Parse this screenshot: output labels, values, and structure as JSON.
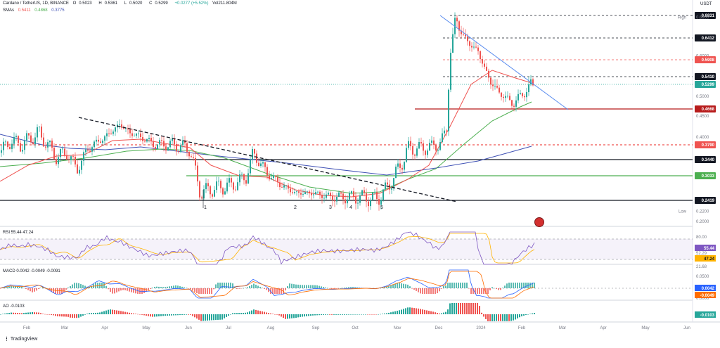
{
  "header": {
    "title": "Cardano / TetherUS, 1D, BINANCE",
    "ohlc": [
      {
        "k": "O",
        "v": "0.5023"
      },
      {
        "k": "H",
        "v": "0.5361"
      },
      {
        "k": "L",
        "v": "0.5020"
      },
      {
        "k": "C",
        "v": "0.5299"
      }
    ],
    "change": "+0.0277 (+5.52%)",
    "volume": "Vol211.804M",
    "sma_label": "SMAs",
    "sma_values": [
      "0.5411",
      "0.4868",
      "0.3775"
    ],
    "currency": "USDT"
  },
  "colors": {
    "up": "#26a69a",
    "down": "#ef5350",
    "sma_fast": "#ef5350",
    "sma_mid": "#4caf50",
    "sma_slow": "#3f51b5",
    "rsi": "#7e57c2",
    "rsi_ma": "#ffb300",
    "macd": "#2962ff",
    "signal": "#ff6d00",
    "trendline": "#5b8def"
  },
  "chart_data": [
    {
      "type": "candlestick",
      "title": "Cardano / TetherUS, 1D, BINANCE",
      "y_axis_ticks": [
        "0.6000",
        "0.5000",
        "0.4500",
        "0.4000",
        "0.2000"
      ],
      "time_labels": [
        "Feb",
        "Mar",
        "Apr",
        "May",
        "Jun",
        "Jul",
        "Aug",
        "Sep",
        "Oct",
        "Nov",
        "Dec",
        "2024",
        "Feb",
        "Mar",
        "Apr",
        "May",
        "Jun"
      ],
      "price_path": [
        [
          0,
          0.36
        ],
        [
          15,
          0.39
        ],
        [
          30,
          0.38
        ],
        [
          55,
          0.41
        ],
        [
          80,
          0.35
        ],
        [
          95,
          0.36
        ],
        [
          110,
          0.32
        ],
        [
          125,
          0.37
        ],
        [
          150,
          0.4
        ],
        [
          170,
          0.43
        ],
        [
          185,
          0.41
        ],
        [
          200,
          0.4
        ],
        [
          220,
          0.38
        ],
        [
          245,
          0.38
        ],
        [
          270,
          0.37
        ],
        [
          285,
          0.26
        ],
        [
          300,
          0.27
        ],
        [
          330,
          0.28
        ],
        [
          350,
          0.3
        ],
        [
          360,
          0.36
        ],
        [
          380,
          0.31
        ],
        [
          400,
          0.28
        ],
        [
          420,
          0.26
        ],
        [
          445,
          0.26
        ],
        [
          470,
          0.25
        ],
        [
          500,
          0.25
        ],
        [
          520,
          0.25
        ],
        [
          535,
          0.245
        ],
        [
          550,
          0.27
        ],
        [
          570,
          0.33
        ],
        [
          580,
          0.37
        ],
        [
          600,
          0.37
        ],
        [
          625,
          0.38
        ],
        [
          635,
          0.42
        ],
        [
          640,
          0.6
        ],
        [
          648,
          0.68
        ],
        [
          660,
          0.64
        ],
        [
          680,
          0.61
        ],
        [
          695,
          0.54
        ],
        [
          710,
          0.51
        ],
        [
          730,
          0.48
        ],
        [
          745,
          0.51
        ],
        [
          760,
          0.53
        ]
      ],
      "price_levels": [
        {
          "value": "0.6831",
          "kind": "high"
        },
        {
          "value": "0.6800",
          "kind": "label",
          "text": "High"
        },
        {
          "value": "0.6412",
          "kind": "resistance"
        },
        {
          "value": "0.5908",
          "kind": "resistance"
        },
        {
          "value": "0.5410",
          "kind": "resistance"
        },
        {
          "value": "0.5299",
          "kind": "current"
        },
        {
          "value": "0.4668",
          "kind": "support"
        },
        {
          "value": "0.3790",
          "kind": "support"
        },
        {
          "value": "0.3440",
          "kind": "support"
        },
        {
          "value": "0.3033",
          "kind": "support"
        },
        {
          "value": "0.2419",
          "kind": "support"
        },
        {
          "value": "0.2200",
          "kind": "label",
          "text": "Low"
        }
      ],
      "wave_labels": [
        "1",
        "2",
        "3",
        "4",
        "5"
      ]
    },
    {
      "type": "line",
      "name": "RSI",
      "values_text": [
        "55.44",
        "47.24"
      ],
      "levels": [
        "80.00",
        "52.29",
        "21.68"
      ],
      "right_tags": [
        "55.44",
        "47.24"
      ]
    },
    {
      "type": "bar",
      "name": "MACD",
      "values_text": [
        "0.0042",
        "-0.0049",
        "-0.0091"
      ],
      "axis_ticks": [
        "0.0500",
        "0.0000"
      ],
      "right_tags": [
        "0.0042",
        "-0.0049"
      ]
    },
    {
      "type": "bar",
      "name": "AO",
      "values_text": [
        "-0.0103"
      ],
      "right_tags": [
        "-0.0103"
      ]
    }
  ],
  "footer": {
    "brand": "TradingView"
  }
}
